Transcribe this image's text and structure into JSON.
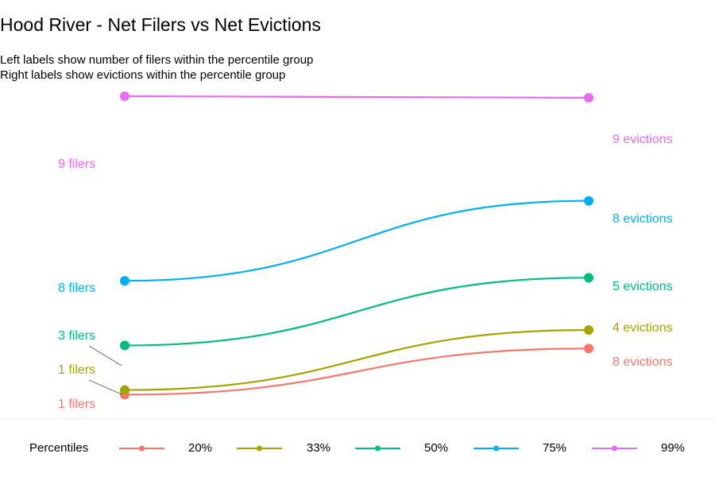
{
  "chart_data": {
    "type": "line",
    "title": "Hood River - Net Filers vs Net Evictions",
    "subtitle_lines": [
      "Left labels show number of filers within the percentile group",
      "Right labels show evictions within the percentile group"
    ],
    "legend_title": "Percentiles",
    "legend_placement": "bottom",
    "series": [
      {
        "name": "20%",
        "color": "#F8766D",
        "left_value": 0.03,
        "right_value": 0.18,
        "left_label": "1 filers",
        "right_label": "8 evictions"
      },
      {
        "name": "33%",
        "color": "#A3A500",
        "left_value": 0.045,
        "right_value": 0.24,
        "left_label": "1 filers",
        "right_label": "4 evictions"
      },
      {
        "name": "50%",
        "color": "#00BF7D",
        "left_value": 0.19,
        "right_value": 0.41,
        "left_label": "3 filers",
        "right_label": "5 evictions"
      },
      {
        "name": "75%",
        "color": "#00B0F6",
        "left_value": 0.4,
        "right_value": 0.66,
        "left_label": "8 filers",
        "right_label": "8 evictions"
      },
      {
        "name": "99%",
        "color": "#E76BF3",
        "left_value": 1.0,
        "right_value": 0.995,
        "left_label": "9 filers",
        "right_label": "9 evictions"
      }
    ],
    "grid": false
  }
}
